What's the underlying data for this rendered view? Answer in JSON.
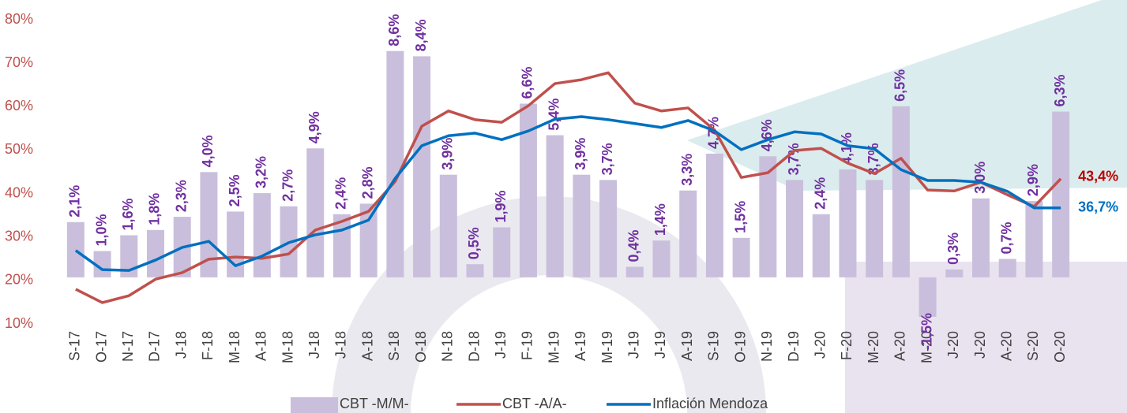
{
  "chart_data": {
    "type": "bar",
    "categories": [
      "S-17",
      "O-17",
      "N-17",
      "D-17",
      "J-18",
      "F-18",
      "M-18",
      "A-18",
      "M-18",
      "J-18",
      "J-18",
      "A-18",
      "S-18",
      "O-18",
      "N-18",
      "D-18",
      "J-19",
      "F-19",
      "M-19",
      "A-19",
      "M-19",
      "J-19",
      "J-19",
      "A-19",
      "S-19",
      "O-19",
      "N-19",
      "D-19",
      "J-20",
      "F-20",
      "M-20",
      "A-20",
      "M-20",
      "J-20",
      "J-20",
      "A-20",
      "S-20",
      "O-20"
    ],
    "series": [
      {
        "name": "CBT -M/M-",
        "type": "bar",
        "axis": "y2",
        "color": "#c9bfdc",
        "label_color": "#7030a0",
        "values": [
          2.1,
          1.0,
          1.6,
          1.8,
          2.3,
          4.0,
          2.5,
          3.2,
          2.7,
          4.9,
          2.4,
          2.8,
          8.6,
          8.4,
          3.9,
          0.5,
          1.9,
          6.6,
          5.4,
          3.9,
          3.7,
          0.4,
          1.4,
          3.3,
          4.7,
          1.5,
          4.6,
          3.7,
          2.4,
          4.1,
          3.7,
          6.5,
          -1.5,
          0.3,
          3.0,
          0.7,
          2.9,
          6.3
        ],
        "value_labels": [
          "2,1%",
          "1,0%",
          "1,6%",
          "1,8%",
          "2,3%",
          "4,0%",
          "2,5%",
          "3,2%",
          "2,7%",
          "4,9%",
          "2,4%",
          "2,8%",
          "8,6%",
          "8,4%",
          "3,9%",
          "0,5%",
          "1,9%",
          "6,6%",
          "5,4%",
          "3,9%",
          "3,7%",
          "0,4%",
          "1,4%",
          "3,3%",
          "4,7%",
          "1,5%",
          "4,6%",
          "3,7%",
          "2,4%",
          "4,1%",
          "3,7%",
          "6,5%",
          "-1,5%",
          "0,3%",
          "3,0%",
          "0,7%",
          "2,9%",
          "6,3%"
        ]
      },
      {
        "name": "CBT -A/A-",
        "type": "line",
        "color": "#c0504d",
        "values": [
          18.0,
          14.9,
          16.5,
          20.3,
          21.8,
          24.9,
          25.4,
          25.1,
          26.1,
          31.6,
          33.6,
          35.9,
          42.8,
          55.5,
          59.0,
          57.0,
          56.4,
          60.2,
          65.3,
          66.2,
          67.8,
          60.8,
          59.0,
          59.7,
          54.6,
          43.7,
          44.8,
          49.9,
          50.4,
          47.0,
          44.6,
          48.1,
          40.8,
          40.6,
          42.6,
          39.7,
          37.0,
          43.4
        ],
        "end_label": "43,4%",
        "end_label_color": "#c00000"
      },
      {
        "name": "Inflación Mendoza",
        "type": "line",
        "color": "#0070c0",
        "values": [
          26.9,
          22.5,
          22.3,
          24.7,
          27.6,
          29.0,
          23.4,
          25.6,
          28.7,
          30.5,
          31.6,
          33.9,
          43.5,
          51.0,
          53.3,
          53.9,
          52.4,
          54.4,
          57.1,
          57.7,
          57.0,
          56.1,
          55.2,
          56.8,
          54.4,
          50.1,
          52.4,
          54.2,
          53.7,
          51.0,
          50.3,
          45.5,
          43.0,
          43.0,
          42.6,
          40.5,
          36.7,
          36.7
        ],
        "end_label": "36,7%",
        "end_label_color": "#0070c0"
      }
    ],
    "ylim": [
      10,
      80
    ],
    "yticks": [
      {
        "value": 10,
        "label": "10%"
      },
      {
        "value": 20,
        "label": "20%"
      },
      {
        "value": 30,
        "label": "30%"
      },
      {
        "value": 40,
        "label": "40%"
      },
      {
        "value": 50,
        "label": "50%"
      },
      {
        "value": 60,
        "label": "60%"
      },
      {
        "value": 70,
        "label": "70%"
      },
      {
        "value": 80,
        "label": "80%"
      }
    ],
    "y2lim": [
      -1.77,
      9.79
    ],
    "grid": false,
    "legend": "bottom"
  }
}
